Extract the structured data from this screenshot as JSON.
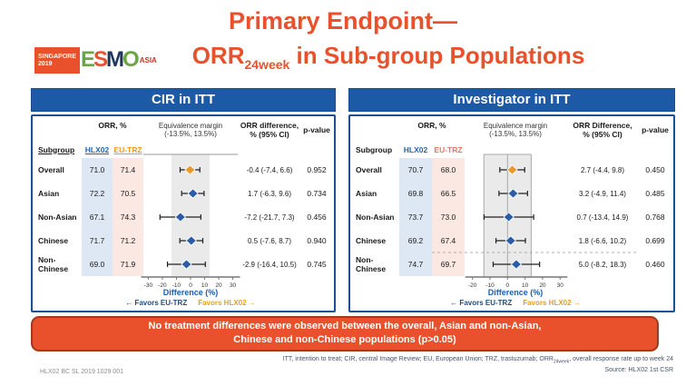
{
  "slide": {
    "title_line1": "Primary Endpoint—",
    "title2_pre": "ORR",
    "title2_sub": "24week",
    "title2_post": " in Sub-group Populations",
    "colors": {
      "accent_orange": "#E8512B",
      "header_blue": "#1C5AA5",
      "panel_border_blue": "#1B4F93",
      "hlx02_col_bg": "#DEE8F5",
      "eutrz_col_bg": "#FBE8E2",
      "equivalence_band": "#EAEAEA",
      "diamond_blue": "#2A5CA8",
      "diamond_orange": "#E8992B"
    }
  },
  "logo": {
    "singapore": "SINGAPORE",
    "year": "2019",
    "esmo_letters": [
      "E",
      "S",
      "M",
      "O"
    ],
    "asia": "ASIA"
  },
  "banner": {
    "line1": "No treatment differences were observed between the overall, Asian and non-Asian,",
    "line2": "Chinese and non-Chinese populations (p>0.05)"
  },
  "footer": {
    "abbrev_pre": "ITT, intention to treat; CIR, central Image Review; EU, European Union; TRZ, trastuzumab; ORR",
    "abbrev_sub": "24week",
    "abbrev_post": ", overall response rate up to week 24",
    "source": "Source: HLX02 1st CSR",
    "slide_code": "HLX02 BC SL 2019 1029 001"
  },
  "chart_data": [
    {
      "type": "forest",
      "title": "CIR in ITT",
      "headers": {
        "orr_group": "ORR, %",
        "subgroup": "Subgroup",
        "hlx02": "HLX02",
        "eutrz": "EU-TRZ",
        "equiv1": "Equivalence margin",
        "equiv2": "(-13.5%, 13.5%)",
        "diff1": "ORR difference,",
        "diff2": "% (95% CI)",
        "pvalue": "p-value"
      },
      "underline_headers": true,
      "hlx02_color": "#2266B2",
      "eutrz_color": "#E89B2C",
      "xlabel": "Difference (%)",
      "favors_left": "Favors EU-TRZ",
      "favors_right": "Favors HLX02",
      "xticks": [
        -30,
        -20,
        -10,
        0,
        10,
        20,
        30
      ],
      "xlim": [
        -33.5,
        33.5
      ],
      "equivalence_margin": [
        -13.5,
        13.5
      ],
      "plot_style": "band",
      "dashed_divider_after_row": null,
      "rows": [
        {
          "subgroup": "Overall",
          "hlx02": "71.0",
          "eutrz": "71.4",
          "est": -0.4,
          "lo": -7.4,
          "hi": 6.6,
          "diff": "-0.4 (-7.4, 6.6)",
          "p": "0.952",
          "marker": "#E8992B"
        },
        {
          "subgroup": "Asian",
          "hlx02": "72.2",
          "eutrz": "70.5",
          "est": 1.7,
          "lo": -6.3,
          "hi": 9.6,
          "diff": "1.7 (-6.3, 9.6)",
          "p": "0.734",
          "marker": "#2A5CA8"
        },
        {
          "subgroup": "Non-Asian",
          "hlx02": "67.1",
          "eutrz": "74.3",
          "est": -7.2,
          "lo": -21.7,
          "hi": 7.3,
          "diff": "-7.2 (-21.7, 7.3)",
          "p": "0.456",
          "marker": "#2A5CA8"
        },
        {
          "subgroup": "Chinese",
          "hlx02": "71.7",
          "eutrz": "71.2",
          "est": 0.5,
          "lo": -7.6,
          "hi": 8.7,
          "diff": "0.5 (-7.6, 8.7)",
          "p": "0.940",
          "marker": "#2A5CA8"
        },
        {
          "subgroup": "Non-Chinese",
          "hlx02": "69.0",
          "eutrz": "71.9",
          "est": -2.9,
          "lo": -16.4,
          "hi": 10.5,
          "diff": "-2.9 (-16.4, 10.5)",
          "p": "0.745",
          "marker": "#2A5CA8"
        }
      ]
    },
    {
      "type": "forest",
      "title": "Investigator in ITT",
      "headers": {
        "orr_group": "ORR, %",
        "subgroup": "Subgroup",
        "hlx02": "HLX02",
        "eutrz": "EU-TRZ",
        "equiv1": "Equivalence margin",
        "equiv2": "(-13.5%, 13.5%)",
        "diff1": "ORR Difference,",
        "diff2": "% (95% CI)",
        "pvalue": "p-value"
      },
      "underline_headers": false,
      "hlx02_color": "#2266B2",
      "eutrz_color": "#E8755A",
      "xlabel": "Difference (%)",
      "favors_left": "Favors EU-TRZ",
      "favors_right": "Favors HLX02",
      "xticks": [
        -20,
        -10,
        0,
        10,
        20,
        30
      ],
      "xlim": [
        -24.5,
        33.5
      ],
      "equivalence_margin": [
        -13.5,
        13.5
      ],
      "plot_style": "box",
      "dashed_divider_after_row": 3,
      "rows": [
        {
          "subgroup": "Overall",
          "hlx02": "70.7",
          "eutrz": "68.0",
          "est": 2.7,
          "lo": -4.4,
          "hi": 9.8,
          "diff": "2.7 (-4.4, 9.8)",
          "p": "0.450",
          "marker": "#E8992B"
        },
        {
          "subgroup": "Asian",
          "hlx02": "69.8",
          "eutrz": "66.5",
          "est": 3.2,
          "lo": -4.9,
          "hi": 11.4,
          "diff": "3.2 (-4.9, 11.4)",
          "p": "0.485",
          "marker": "#2A5CA8"
        },
        {
          "subgroup": "Non-Asian",
          "hlx02": "73.7",
          "eutrz": "73.0",
          "est": 0.7,
          "lo": -13.4,
          "hi": 14.9,
          "diff": "0.7 (-13.4, 14.9)",
          "p": "0.768",
          "marker": "#2A5CA8"
        },
        {
          "subgroup": "Chinese",
          "hlx02": "69.2",
          "eutrz": "67.4",
          "est": 1.8,
          "lo": -6.6,
          "hi": 10.2,
          "diff": "1.8 (-6.6, 10.2)",
          "p": "0.699",
          "marker": "#2A5CA8"
        },
        {
          "subgroup": "Non-Chinese",
          "hlx02": "74.7",
          "eutrz": "69.7",
          "est": 5.0,
          "lo": -8.2,
          "hi": 18.3,
          "diff": "5.0 (-8.2, 18.3)",
          "p": "0.460",
          "marker": "#2A5CA8"
        }
      ]
    }
  ]
}
